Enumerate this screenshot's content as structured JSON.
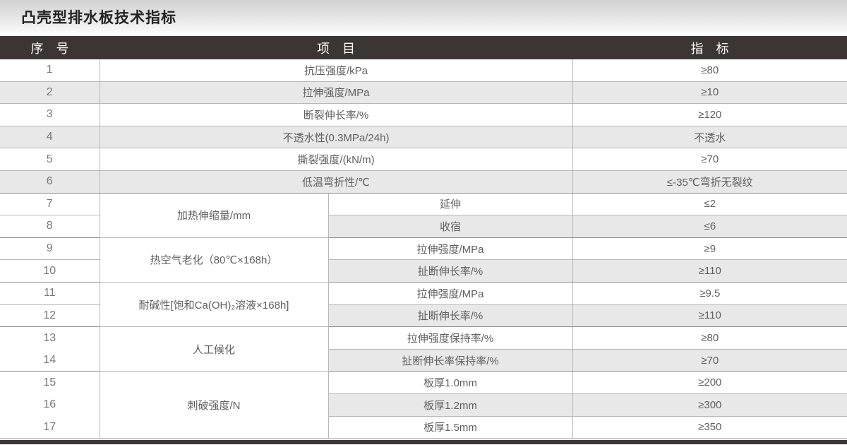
{
  "title": "凸壳型排水板技术指标",
  "colors": {
    "header_bg": "#3B3533",
    "stripe": "#E8E8E8",
    "border": "#B7B7B7"
  },
  "header": {
    "col_no": "序　号",
    "col_item": "项　目",
    "col_index": "指　标"
  },
  "chart_data": {
    "type": "table",
    "title": "凸壳型排水板技术指标",
    "columns": [
      "序号",
      "项目",
      "指标"
    ]
  },
  "rows": [
    {
      "no": "1",
      "item": "抗压强度/kPa",
      "value": "≥80"
    },
    {
      "no": "2",
      "item": "拉伸强度/MPa",
      "value": "≥10"
    },
    {
      "no": "3",
      "item": "断裂伸长率/%",
      "value": "≥120"
    },
    {
      "no": "4",
      "item": "不透水性(0.3MPa/24h)",
      "value": "不透水"
    },
    {
      "no": "5",
      "item": "撕裂强度/(kN/m)",
      "value": "≥70"
    },
    {
      "no": "6",
      "item": "低温弯折性/℃",
      "value": "≤-35℃弯折无裂纹"
    },
    {
      "no": "7",
      "group": "加热伸缩量/mm",
      "sub": "延伸",
      "value": "≤2"
    },
    {
      "no": "8",
      "sub": "收宿",
      "value": "≤6"
    },
    {
      "no": "9",
      "group": "热空气老化（80℃×168h）",
      "sub": "拉伸强度/MPa",
      "value": "≥9"
    },
    {
      "no": "10",
      "sub": "扯断伸长率/%",
      "value": "≥110"
    },
    {
      "no": "11",
      "group": "耐碱性[饱和Ca(OH)₂溶液×168h]",
      "sub": "拉伸强度/MPa",
      "value": "≥9.5"
    },
    {
      "no": "12",
      "sub": "扯断伸长率/%",
      "value": "≥110"
    },
    {
      "no": "13",
      "group": "人工候化",
      "sub": "拉伸强度保持率/%",
      "value": "≥80"
    },
    {
      "no": "14",
      "sub": "扯断伸长率保持率/%",
      "value": "≥70"
    },
    {
      "no": "15",
      "group": "刺破强度/N",
      "sub": "板厚1.0mm",
      "value": "≥200"
    },
    {
      "no": "16",
      "sub": "板厚1.2mm",
      "value": "≥300"
    },
    {
      "no": "17",
      "sub": "板厚1.5mm",
      "value": "≥350"
    }
  ]
}
